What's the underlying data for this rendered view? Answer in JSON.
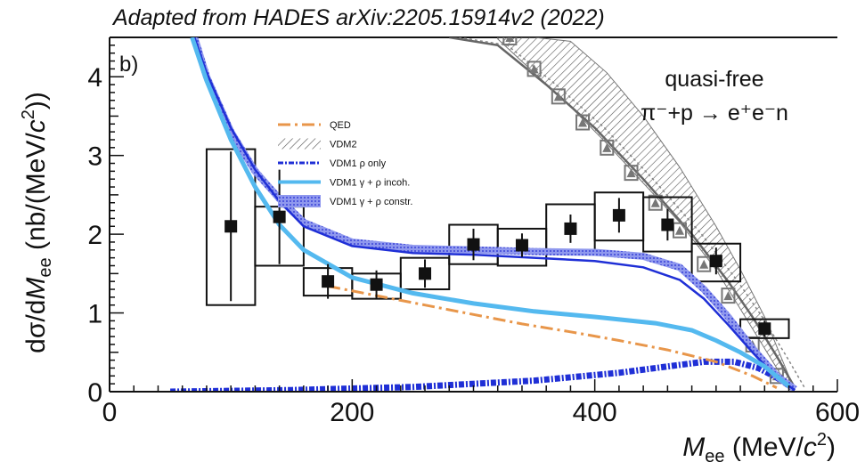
{
  "credit": "Adapted from  HADES arXiv:2205.15914v2 (2022)",
  "chart_data": {
    "type": "line",
    "panel_label": "b)",
    "annotation_line1": "quasi-free",
    "annotation_line2": "π⁻+p → e⁺e⁻n",
    "xlabel": "M_ee (MeV/c²)",
    "ylabel": "dσ/dM_ee (nb/(MeV/c²))",
    "xlim": [
      0,
      600
    ],
    "ylim": [
      0,
      4.5
    ],
    "x_ticks": [
      "0",
      "200",
      "400",
      "600"
    ],
    "y_ticks": [
      "1",
      "2",
      "3",
      "4"
    ],
    "legend_position": "upper-left (inside)",
    "legend": [
      {
        "label": "QED",
        "style": "dash-dot",
        "color": "#e8964a"
      },
      {
        "label": "VDM2",
        "style": "hatched band",
        "color": "#666666"
      },
      {
        "label": "VDM1 ρ only",
        "style": "dash-dot-dot",
        "color": "#1f2fd6"
      },
      {
        "label": "VDM1 γ + ρ incoh.",
        "style": "solid",
        "color": "#54b9ef"
      },
      {
        "label": "VDM1 γ + ρ constr.",
        "style": "band",
        "color": "#7a86e8"
      }
    ],
    "data_points": {
      "name": "data",
      "color": "#000000",
      "points": [
        {
          "x": 100,
          "y": 2.1,
          "stat": 0.95,
          "xlo": 80,
          "xhi": 120,
          "syslo": 1.1,
          "syshi": 3.08
        },
        {
          "x": 140,
          "y": 2.22,
          "stat": 0.6,
          "xlo": 120,
          "xhi": 160,
          "syslo": 1.6,
          "syshi": 2.35
        },
        {
          "x": 180,
          "y": 1.4,
          "stat": 0.22,
          "xlo": 160,
          "xhi": 200,
          "syslo": 1.22,
          "syshi": 1.57
        },
        {
          "x": 220,
          "y": 1.36,
          "stat": 0.18,
          "xlo": 200,
          "xhi": 240,
          "syslo": 1.18,
          "syshi": 1.5
        },
        {
          "x": 260,
          "y": 1.5,
          "stat": 0.18,
          "xlo": 240,
          "xhi": 280,
          "syslo": 1.3,
          "syshi": 1.7
        },
        {
          "x": 300,
          "y": 1.87,
          "stat": 0.2,
          "xlo": 280,
          "xhi": 320,
          "syslo": 1.62,
          "syshi": 2.12
        },
        {
          "x": 340,
          "y": 1.86,
          "stat": 0.15,
          "xlo": 320,
          "xhi": 360,
          "syslo": 1.6,
          "syshi": 2.07
        },
        {
          "x": 380,
          "y": 2.07,
          "stat": 0.18,
          "xlo": 360,
          "xhi": 400,
          "syslo": 1.75,
          "syshi": 2.38
        },
        {
          "x": 420,
          "y": 2.24,
          "stat": 0.22,
          "xlo": 400,
          "xhi": 440,
          "syslo": 1.92,
          "syshi": 2.53
        },
        {
          "x": 460,
          "y": 2.12,
          "stat": 0.2,
          "xlo": 440,
          "xhi": 480,
          "syslo": 1.78,
          "syshi": 2.47
        },
        {
          "x": 500,
          "y": 1.66,
          "stat": 0.17,
          "xlo": 480,
          "xhi": 520,
          "syslo": 1.4,
          "syshi": 1.88
        },
        {
          "x": 540,
          "y": 0.8,
          "stat": 0.1,
          "xlo": 520,
          "xhi": 560,
          "syslo": 0.68,
          "syshi": 0.92
        }
      ]
    },
    "qed": {
      "x": [
        180,
        220,
        260,
        300,
        340,
        380,
        420,
        460,
        500,
        530,
        550
      ],
      "y": [
        1.34,
        1.22,
        1.1,
        0.98,
        0.86,
        0.76,
        0.65,
        0.53,
        0.38,
        0.2,
        0.05
      ]
    },
    "vdm1_rho_only": {
      "x": [
        50,
        150,
        250,
        350,
        420,
        460,
        490,
        515,
        535,
        550,
        565
      ],
      "y": [
        0.0,
        0.02,
        0.06,
        0.14,
        0.24,
        0.32,
        0.38,
        0.38,
        0.3,
        0.18,
        0.03
      ]
    },
    "vdm1_incoh": {
      "x": [
        68,
        80,
        100,
        120,
        140,
        160,
        200,
        250,
        300,
        350,
        400,
        450,
        480,
        500,
        520,
        540,
        560
      ],
      "y": [
        4.5,
        3.95,
        3.2,
        2.6,
        2.12,
        1.8,
        1.45,
        1.25,
        1.12,
        1.02,
        0.95,
        0.87,
        0.78,
        0.65,
        0.5,
        0.32,
        0.07
      ]
    },
    "vdm1_constr": {
      "x": [
        70,
        80,
        100,
        120,
        140,
        160,
        200,
        250,
        300,
        350,
        400,
        440,
        470,
        490,
        510,
        530,
        550,
        565
      ],
      "y": [
        4.5,
        4.0,
        3.3,
        2.8,
        2.45,
        2.15,
        1.9,
        1.82,
        1.8,
        1.78,
        1.77,
        1.72,
        1.58,
        1.3,
        0.95,
        0.55,
        0.2,
        0.03
      ]
    },
    "vdm1_blue": {
      "x": [
        70,
        80,
        100,
        120,
        140,
        160,
        200,
        250,
        300,
        350,
        400,
        440,
        470,
        490,
        510,
        530,
        550,
        565
      ],
      "y": [
        4.5,
        4.05,
        3.35,
        2.82,
        2.42,
        2.1,
        1.85,
        1.76,
        1.74,
        1.7,
        1.66,
        1.58,
        1.42,
        1.18,
        0.85,
        0.5,
        0.18,
        0.02
      ]
    },
    "vdm2_band": {
      "x": [
        320,
        350,
        380,
        410,
        440,
        470,
        500,
        520,
        540,
        560
      ],
      "lo": [
        4.48,
        4.05,
        3.62,
        3.15,
        2.65,
        2.15,
        1.55,
        1.05,
        0.55,
        0.05
      ],
      "hi": [
        4.55,
        4.55,
        4.45,
        4.05,
        3.5,
        2.85,
        2.1,
        1.55,
        0.95,
        0.2
      ]
    },
    "vdm2_markers": {
      "x": [
        330,
        350,
        370,
        390,
        410,
        430,
        450,
        470,
        490,
        510,
        530,
        550
      ],
      "y": [
        4.5,
        4.1,
        3.75,
        3.42,
        3.1,
        2.78,
        2.4,
        2.05,
        1.62,
        1.22,
        0.6,
        0.2
      ]
    },
    "vdm2_line": {
      "x": [
        280,
        320,
        360,
        400,
        440,
        480,
        510,
        530,
        550,
        565
      ],
      "y": [
        4.55,
        4.4,
        3.9,
        3.35,
        2.7,
        2.0,
        1.4,
        0.95,
        0.45,
        0.05
      ]
    }
  }
}
